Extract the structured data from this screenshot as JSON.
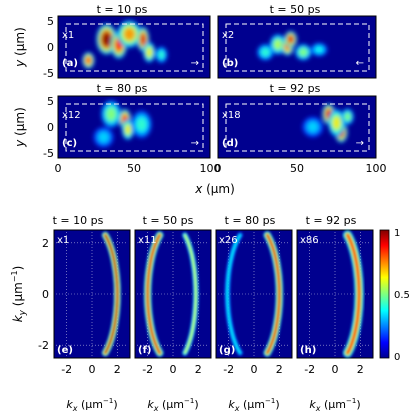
{
  "chart_data": [
    {
      "type": "heatmap",
      "title": "t = 10 ps",
      "label": "(a)",
      "scale_factor": "x1",
      "arrow": "→",
      "xlabel": "",
      "ylabel": "y (μm)",
      "xlim": [
        0,
        100
      ],
      "ylim": [
        -6,
        6
      ],
      "x_ticks": [],
      "y_ticks": [
        "5",
        "0",
        "-5"
      ],
      "region_y": [
        -4,
        4
      ],
      "intensity_peaks": [
        {
          "x": 20,
          "y": -2.6,
          "sx": 3,
          "sy": 1.2,
          "a": 0.8
        },
        {
          "x": 32,
          "y": 1.5,
          "sx": 5,
          "sy": 2.2,
          "a": 1.0
        },
        {
          "x": 40,
          "y": 0.4,
          "sx": 4,
          "sy": 2.0,
          "a": 0.85
        },
        {
          "x": 47,
          "y": 2.5,
          "sx": 6,
          "sy": 2.0,
          "a": 0.7
        },
        {
          "x": 56,
          "y": 1.5,
          "sx": 3,
          "sy": 1.8,
          "a": 0.9
        },
        {
          "x": 60,
          "y": -1.0,
          "sx": 3,
          "sy": 1.5,
          "a": 0.6
        },
        {
          "x": 68,
          "y": -1.5,
          "sx": 3,
          "sy": 1.2,
          "a": 0.35
        }
      ]
    },
    {
      "type": "heatmap",
      "title": "t = 50 ps",
      "label": "(b)",
      "scale_factor": "x2",
      "arrow": "←",
      "xlabel": "",
      "ylabel": "",
      "xlim": [
        0,
        100
      ],
      "ylim": [
        -6,
        6
      ],
      "x_ticks": [],
      "y_ticks": [],
      "region_y": [
        -4,
        4
      ],
      "intensity_peaks": [
        {
          "x": 30,
          "y": -1.0,
          "sx": 4,
          "sy": 1.2,
          "a": 0.35
        },
        {
          "x": 38,
          "y": 0.5,
          "sx": 4,
          "sy": 1.5,
          "a": 0.5
        },
        {
          "x": 44,
          "y": 0.2,
          "sx": 3,
          "sy": 1.4,
          "a": 0.8
        },
        {
          "x": 46,
          "y": 1.5,
          "sx": 3,
          "sy": 1.2,
          "a": 0.9
        },
        {
          "x": 54,
          "y": -1.0,
          "sx": 4,
          "sy": 1.2,
          "a": 0.45
        },
        {
          "x": 64,
          "y": -0.5,
          "sx": 4,
          "sy": 1.0,
          "a": 0.3
        }
      ]
    },
    {
      "type": "heatmap",
      "title": "t = 80 ps",
      "label": "(c)",
      "scale_factor": "x12",
      "arrow": "→",
      "xlabel": "",
      "ylabel": "y (μm)",
      "xlim": [
        0,
        100
      ],
      "ylim": [
        -6,
        6
      ],
      "x_ticks": [
        "0",
        "50",
        "100"
      ],
      "y_ticks": [
        "5",
        "0",
        "-5"
      ],
      "region_y": [
        -4,
        4
      ],
      "intensity_peaks": [
        {
          "x": 35,
          "y": 2.5,
          "sx": 5,
          "sy": 2.0,
          "a": 0.45
        },
        {
          "x": 44,
          "y": 1.5,
          "sx": 3,
          "sy": 1.5,
          "a": 0.85
        },
        {
          "x": 46,
          "y": -0.5,
          "sx": 3,
          "sy": 1.5,
          "a": 0.6
        },
        {
          "x": 55,
          "y": 0.5,
          "sx": 5,
          "sy": 2.0,
          "a": 0.35
        },
        {
          "x": 30,
          "y": -2.0,
          "sx": 5,
          "sy": 1.5,
          "a": 0.25
        }
      ]
    },
    {
      "type": "heatmap",
      "title": "t = 92 ps",
      "label": "(d)",
      "scale_factor": "x18",
      "arrow": "→",
      "xlabel": "",
      "ylabel": "",
      "xlim": [
        0,
        100
      ],
      "ylim": [
        -6,
        6
      ],
      "x_ticks": [
        "0",
        "50",
        "100"
      ],
      "y_ticks": [],
      "region_y": [
        -4,
        4
      ],
      "intensity_peaks": [
        {
          "x": 70,
          "y": 2.5,
          "sx": 3,
          "sy": 1.5,
          "a": 0.9
        },
        {
          "x": 78,
          "y": -1.0,
          "sx": 3,
          "sy": 1.5,
          "a": 0.9
        },
        {
          "x": 75,
          "y": 0.8,
          "sx": 4,
          "sy": 2.0,
          "a": 0.6
        },
        {
          "x": 82,
          "y": 2.0,
          "sx": 3,
          "sy": 1.2,
          "a": 0.45
        },
        {
          "x": 60,
          "y": 0.0,
          "sx": 5,
          "sy": 1.5,
          "a": 0.25
        }
      ]
    },
    {
      "type": "heatmap",
      "title": "t = 10 ps",
      "label": "(e)",
      "scale_factor": "x1",
      "xlabel": "kx (μm⁻¹)",
      "ylabel": "ky (μm⁻¹)",
      "xlim": [
        -3,
        3
      ],
      "ylim": [
        -2.5,
        2.5
      ],
      "x_ticks": [
        "-2",
        "0",
        "2"
      ],
      "y_ticks": [
        "2",
        "0",
        "-2"
      ],
      "arcs": [
        {
          "k": 2.0,
          "a": 1.0,
          "w": 0.18
        }
      ]
    },
    {
      "type": "heatmap",
      "title": "t = 50 ps",
      "label": "(f)",
      "scale_factor": "x11",
      "xlabel": "kx (μm⁻¹)",
      "ylabel": "",
      "xlim": [
        -3,
        3
      ],
      "ylim": [
        -2.5,
        2.5
      ],
      "x_ticks": [
        "-2",
        "0",
        "2"
      ],
      "y_ticks": [],
      "arcs": [
        {
          "k": -2.0,
          "a": 0.9,
          "w": 0.2
        },
        {
          "k": 1.8,
          "a": 0.55,
          "w": 0.15
        }
      ]
    },
    {
      "type": "heatmap",
      "title": "t = 80 ps",
      "label": "(g)",
      "scale_factor": "x26",
      "xlabel": "kx (μm⁻¹)",
      "ylabel": "",
      "xlim": [
        -3,
        3
      ],
      "ylim": [
        -2.5,
        2.5
      ],
      "x_ticks": [
        "-2",
        "0",
        "2"
      ],
      "y_ticks": [],
      "arcs": [
        {
          "k": -2.1,
          "a": 0.3,
          "w": 0.15
        },
        {
          "k": 2.0,
          "a": 0.9,
          "w": 0.2
        }
      ]
    },
    {
      "type": "heatmap",
      "title": "t = 92 ps",
      "label": "(h)",
      "scale_factor": "x86",
      "xlabel": "kx (μm⁻¹)",
      "ylabel": "",
      "xlim": [
        -3,
        3
      ],
      "ylim": [
        -2.5,
        2.5
      ],
      "x_ticks": [
        "-2",
        "0",
        "2"
      ],
      "y_ticks": [],
      "arcs": [
        {
          "k": 1.9,
          "a": 0.85,
          "w": 0.25
        }
      ]
    }
  ],
  "colorbar": {
    "ticks": [
      "1",
      "0.5",
      "0"
    ]
  },
  "top_axis_label": "x (μm)"
}
